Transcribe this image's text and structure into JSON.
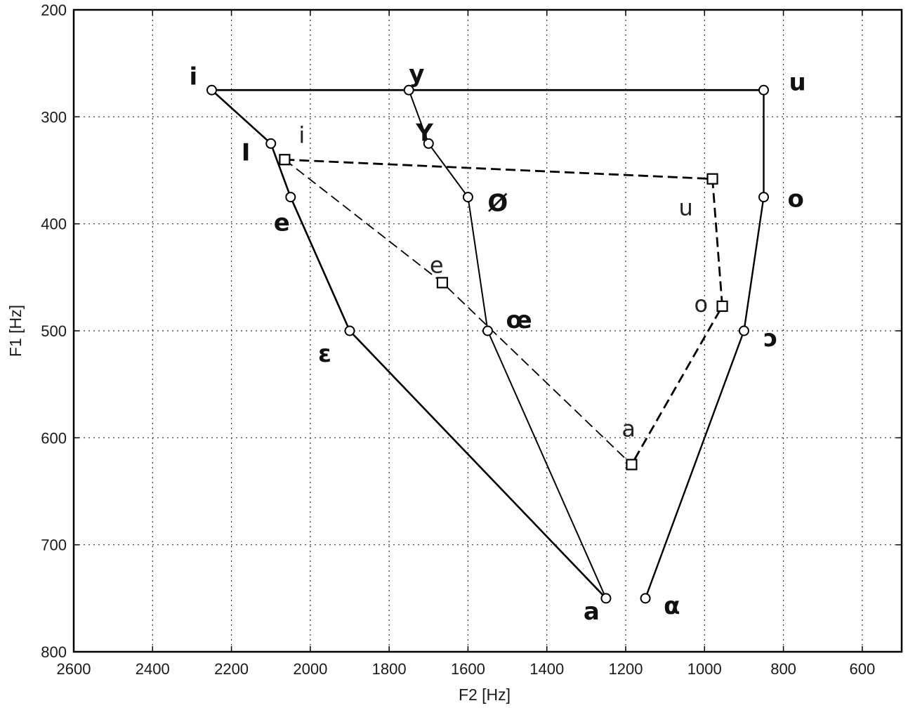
{
  "chart_data": {
    "type": "line",
    "xlabel": "F2 [Hz]",
    "ylabel": "F1 [Hz]",
    "xlim": [
      2600,
      500
    ],
    "ylim": [
      800,
      200
    ],
    "x_reversed": true,
    "y_reversed": true,
    "x_ticks": [
      2600,
      2400,
      2200,
      2000,
      1800,
      1600,
      1400,
      1200,
      1000,
      800,
      600
    ],
    "y_ticks": [
      200,
      300,
      400,
      500,
      600,
      700,
      800
    ],
    "grid": true,
    "points": [
      {
        "id": "i",
        "label": "i",
        "f2": 2250,
        "f1": 275,
        "marker": "circle",
        "style": "bold"
      },
      {
        "id": "I",
        "label": "I",
        "f2": 2100,
        "f1": 325,
        "marker": "circle",
        "style": "bold"
      },
      {
        "id": "e",
        "label": "e",
        "f2": 2050,
        "f1": 375,
        "marker": "circle",
        "style": "bold"
      },
      {
        "id": "eps",
        "label": "ε",
        "f2": 1900,
        "f1": 500,
        "marker": "circle",
        "style": "bold"
      },
      {
        "id": "a",
        "label": "a",
        "f2": 1250,
        "f1": 750,
        "marker": "circle",
        "style": "bold"
      },
      {
        "id": "y",
        "label": "y",
        "f2": 1750,
        "f1": 275,
        "marker": "circle",
        "style": "bold"
      },
      {
        "id": "Y",
        "label": "Y",
        "f2": 1700,
        "f1": 325,
        "marker": "circle",
        "style": "bold"
      },
      {
        "id": "oe",
        "label": "Ø",
        "f2": 1600,
        "f1": 375,
        "marker": "circle",
        "style": "bold"
      },
      {
        "id": "oeh",
        "label": "œ",
        "f2": 1550,
        "f1": 500,
        "marker": "circle",
        "style": "bold"
      },
      {
        "id": "u",
        "label": "u",
        "f2": 850,
        "f1": 275,
        "marker": "circle",
        "style": "bold"
      },
      {
        "id": "o",
        "label": "o",
        "f2": 850,
        "f1": 375,
        "marker": "circle",
        "style": "bold"
      },
      {
        "id": "oo",
        "label": "ɔ",
        "f2": 900,
        "f1": 500,
        "marker": "circle",
        "style": "bold"
      },
      {
        "id": "alpha",
        "label": "α",
        "f2": 1150,
        "f1": 750,
        "marker": "circle",
        "style": "bold"
      },
      {
        "id": "si",
        "label": "i",
        "f2": 2065,
        "f1": 340,
        "marker": "square",
        "style": "light"
      },
      {
        "id": "se",
        "label": "e",
        "f2": 1665,
        "f1": 455,
        "marker": "square",
        "style": "light"
      },
      {
        "id": "sa",
        "label": "a",
        "f2": 1185,
        "f1": 625,
        "marker": "square",
        "style": "light"
      },
      {
        "id": "so",
        "label": "o",
        "f2": 955,
        "f1": 477,
        "marker": "square",
        "style": "light"
      },
      {
        "id": "su",
        "label": "u",
        "f2": 980,
        "f1": 358,
        "marker": "square",
        "style": "light"
      }
    ],
    "lines": [
      {
        "points": [
          "i",
          "u"
        ],
        "style": "solid",
        "width": 2.8
      },
      {
        "points": [
          "i",
          "I",
          "e",
          "eps",
          "a"
        ],
        "style": "solid",
        "width": 2.6
      },
      {
        "points": [
          "y",
          "Y",
          "oe",
          "oeh",
          "a"
        ],
        "style": "solid",
        "width": 2.0
      },
      {
        "points": [
          "u",
          "o",
          "oo",
          "alpha"
        ],
        "style": "solid",
        "width": 2.4
      },
      {
        "points": [
          "si",
          "se",
          "sa"
        ],
        "style": "dashed",
        "width": 1.8
      },
      {
        "points": [
          "si",
          "su",
          "so",
          "sa"
        ],
        "style": "dashed",
        "width": 2.8
      }
    ]
  }
}
